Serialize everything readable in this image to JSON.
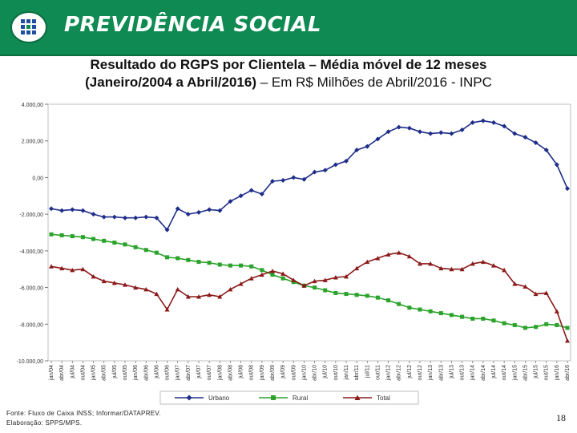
{
  "header": {
    "brand": "PREVIDÊNCIA SOCIAL",
    "logo_icon": "previdencia-logo-icon"
  },
  "title": {
    "line1": "Resultado do RGPS por Clientela – Média móvel de 12 meses",
    "line2_bold": "(Janeiro/2004 a Abril/2016)",
    "line2_rest": " – Em R$ Milhões de Abril/2016 - INPC"
  },
  "chart_data": {
    "type": "line",
    "x": [
      "jan/04",
      "abr/04",
      "jul/04",
      "out/04",
      "jan/05",
      "abr/05",
      "jul/05",
      "out/05",
      "jan/06",
      "abr/06",
      "jul/06",
      "out/06",
      "jan/07",
      "abr/07",
      "jul/07",
      "out/07",
      "jan/08",
      "abr/08",
      "jul/08",
      "out/08",
      "jan/09",
      "abr/09",
      "jul/09",
      "out/09",
      "jan/10",
      "abr/10",
      "jul/10",
      "out/10",
      "jan/11",
      "abr/11",
      "jul/11",
      "out/11",
      "jan/12",
      "abr/12",
      "jul/12",
      "out/12",
      "jan/13",
      "abr/13",
      "jul/13",
      "out/13",
      "jan/14",
      "abr/14",
      "jul/14",
      "out/14",
      "jan/15",
      "abr/15",
      "jul/15",
      "out/15",
      "jan/16",
      "abr/16"
    ],
    "ylim": [
      -10000,
      4000
    ],
    "yticks": [
      "4.000,00",
      "2.000,00",
      "0,00",
      "-2.000,00",
      "-4.000,00",
      "-6.000,00",
      "-8.000,00",
      "-10.000,00"
    ],
    "ytick_values": [
      4000,
      2000,
      0,
      -2000,
      -4000,
      -6000,
      -8000,
      -10000
    ],
    "series": [
      {
        "name": "Urbano",
        "color": "#1f2d8a",
        "marker": "diamond",
        "values": [
          -1700,
          -1800,
          -1750,
          -1800,
          -2000,
          -2150,
          -2150,
          -2200,
          -2200,
          -2150,
          -2200,
          -2850,
          -1700,
          -2000,
          -1900,
          -1750,
          -1800,
          -1300,
          -1000,
          -700,
          -900,
          -200,
          -150,
          0,
          -100,
          300,
          400,
          700,
          900,
          1500,
          1700,
          2100,
          2500,
          2750,
          2700,
          2500,
          2400,
          2450,
          2400,
          2600,
          3000,
          3100,
          3000,
          2800,
          2400,
          2200,
          1900,
          1500,
          700,
          -600
        ]
      },
      {
        "name": "Rural",
        "color": "#2aa32a",
        "marker": "square",
        "values": [
          -3100,
          -3150,
          -3200,
          -3250,
          -3350,
          -3450,
          -3550,
          -3650,
          -3800,
          -3950,
          -4100,
          -4350,
          -4400,
          -4500,
          -4600,
          -4650,
          -4750,
          -4800,
          -4800,
          -4850,
          -5050,
          -5300,
          -5500,
          -5700,
          -5900,
          -6000,
          -6150,
          -6300,
          -6350,
          -6400,
          -6450,
          -6550,
          -6700,
          -6900,
          -7100,
          -7200,
          -7300,
          -7400,
          -7500,
          -7600,
          -7700,
          -7700,
          -7800,
          -7950,
          -8050,
          -8200,
          -8150,
          -8000,
          -8050,
          -8200
        ]
      },
      {
        "name": "Total",
        "color": "#8b1a1a",
        "marker": "triangle",
        "values": [
          -4850,
          -4950,
          -5050,
          -5000,
          -5400,
          -5650,
          -5750,
          -5850,
          -6000,
          -6100,
          -6350,
          -7200,
          -6100,
          -6500,
          -6500,
          -6400,
          -6500,
          -6100,
          -5800,
          -5500,
          -5300,
          -5100,
          -5250,
          -5600,
          -5900,
          -5650,
          -5600,
          -5450,
          -5400,
          -4950,
          -4600,
          -4400,
          -4200,
          -4100,
          -4300,
          -4700,
          -4700,
          -4950,
          -5000,
          -5000,
          -4700,
          -4600,
          -4800,
          -5050,
          -5800,
          -5950,
          -6350,
          -6300,
          -7300,
          -8900
        ]
      }
    ]
  },
  "footer": {
    "line1": "Fonte: Fluxo de Caixa INSS; Informar/DATAPREV.",
    "line2": "Elaboração: SPPS/MPS."
  },
  "page_number": "18"
}
